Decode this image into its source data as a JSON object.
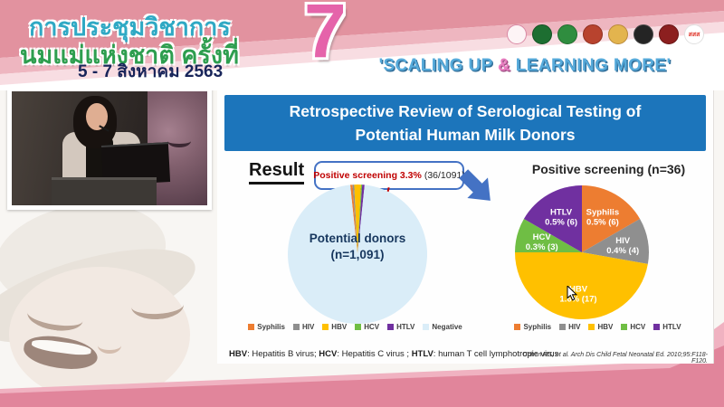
{
  "header": {
    "congress_title_line1": "การประชุมวิชาการ",
    "congress_title_line2": "นมแม่แห่งชาติ ครั้งที่",
    "edition_number": "7",
    "date_text": "5 - 7 สิงหาคม 2563",
    "slogan_part1": "'SCALING UP ",
    "slogan_amp": "&",
    "slogan_part2": " LEARNING MORE'",
    "accent_colors": {
      "banner_pink": "#e2929f",
      "slogan_blue": "#57abdb",
      "slogan_amp_pink": "#e87cc0"
    },
    "logos": [
      {
        "name": "mother-child-foundation-logo",
        "bg": "#fdf4f6",
        "border": "#d989a4",
        "text": ""
      },
      {
        "name": "green-seal-logo",
        "bg": "#1d6e31",
        "border": "#145223",
        "text": ""
      },
      {
        "name": "public-health-seal-logo",
        "bg": "#2f8d3f",
        "border": "#226b2e",
        "text": ""
      },
      {
        "name": "royal-red-gold-emblem-logo",
        "bg": "#b8432e",
        "border": "#8f2f1f",
        "text": ""
      },
      {
        "name": "gold-emblem-logo",
        "bg": "#e3b44e",
        "border": "#b9893a",
        "text": ""
      },
      {
        "name": "black-seal-logo",
        "bg": "#242424",
        "border": "#4a4a4a",
        "text": ""
      },
      {
        "name": "dark-red-seal-logo",
        "bg": "#8c1f1f",
        "border": "#661414",
        "text": ""
      },
      {
        "name": "thai-health-sss-logo",
        "bg": "#ffffff",
        "border": "#e0e0e0",
        "text": "สสส"
      }
    ]
  },
  "slide": {
    "title": "Retrospective Review of Serological Testing of Potential Human Milk Donors",
    "title_bar_color": "#1c75bb",
    "result_label": "Result",
    "callout": {
      "highlight": "Positive screening 3.3%",
      "detail": "(36/1091)",
      "border_color": "#4472c4",
      "highlight_color": "#c00000"
    },
    "footnote_segments": [
      {
        "text": "HBV",
        "bold": true
      },
      {
        "text": ": Hepatitis B virus; ",
        "bold": false
      },
      {
        "text": "HCV",
        "bold": true
      },
      {
        "text": ": Hepatitis C virus ; ",
        "bold": false
      },
      {
        "text": "HTLV",
        "bold": true
      },
      {
        "text": ": human T cell lymphotropic virus",
        "bold": false
      }
    ],
    "citation": "Cohen RS, et al. Arch Dis Child Fetal Neonatal Ed. 2010;95:F118-F120."
  },
  "chart_data": [
    {
      "type": "pie",
      "title": "Potential donors (n=1,091)",
      "center_label_line1": "Potential donors",
      "center_label_line2": "(n=1,091)",
      "total": 1091,
      "start_angle": -6,
      "slices": [
        {
          "label": "Syphilis",
          "value": 6,
          "color": "#ED7D31"
        },
        {
          "label": "HIV",
          "value": 4,
          "color": "#8f8f8f"
        },
        {
          "label": "HBV",
          "value": 17,
          "color": "#FFC000"
        },
        {
          "label": "HCV",
          "value": 3,
          "color": "#6FBE44"
        },
        {
          "label": "HTLV",
          "value": 6,
          "color": "#7030A0"
        },
        {
          "label": "Negative",
          "value": 1055,
          "color": "#daedf8"
        }
      ],
      "legend": [
        {
          "label": "Syphilis",
          "color": "#ED7D31"
        },
        {
          "label": "HIV",
          "color": "#8f8f8f"
        },
        {
          "label": "HBV",
          "color": "#FFC000"
        },
        {
          "label": "HCV",
          "color": "#6FBE44"
        },
        {
          "label": "HTLV",
          "color": "#7030A0"
        },
        {
          "label": "Negative",
          "color": "#daedf8"
        }
      ],
      "legend_position": "bottom"
    },
    {
      "type": "pie",
      "title": "Positive screening (n=36)",
      "total": 36,
      "start_angle": 0,
      "slices": [
        {
          "label": "Syphilis",
          "value": 6,
          "pct_label": "0.5% (6)",
          "color": "#ED7D31"
        },
        {
          "label": "HIV",
          "value": 4,
          "pct_label": "0.4% (4)",
          "color": "#8f8f8f"
        },
        {
          "label": "HBV",
          "value": 17,
          "pct_label": "1.6% (17)",
          "color": "#FFC000"
        },
        {
          "label": "HCV",
          "value": 3,
          "pct_label": "0.3% (3)",
          "color": "#6FBE44"
        },
        {
          "label": "HTLV",
          "value": 6,
          "pct_label": "0.5% (6)",
          "color": "#7030A0"
        }
      ],
      "legend": [
        {
          "label": "Syphilis",
          "color": "#ED7D31"
        },
        {
          "label": "HIV",
          "color": "#8f8f8f"
        },
        {
          "label": "HBV",
          "color": "#FFC000"
        },
        {
          "label": "HCV",
          "color": "#6FBE44"
        },
        {
          "label": "HTLV",
          "color": "#7030A0"
        }
      ],
      "legend_position": "bottom"
    }
  ]
}
